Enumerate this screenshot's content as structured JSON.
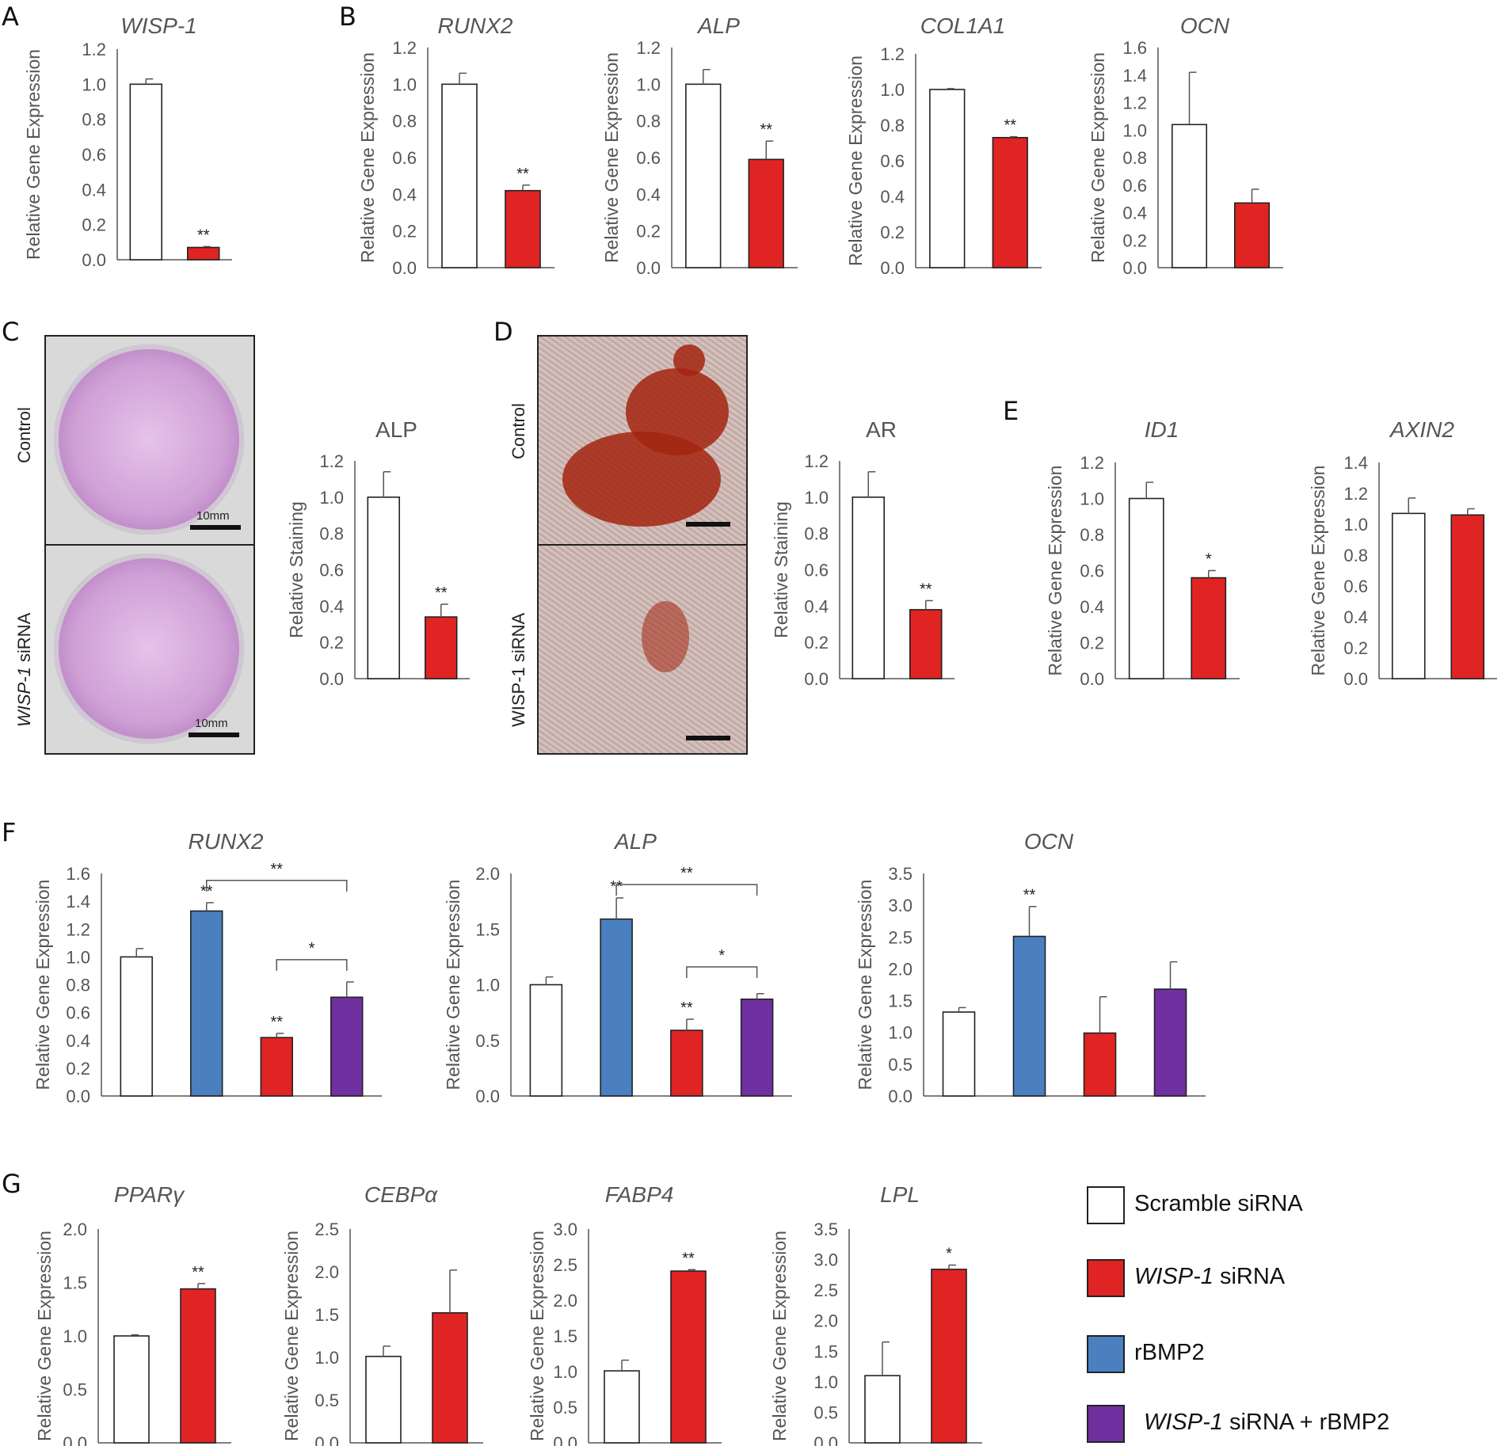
{
  "panel_labels": [
    "A",
    "B",
    "C",
    "D",
    "E",
    "F",
    "G"
  ],
  "colors": {
    "scramble": "#ffffff",
    "wisp1": "#e02424",
    "rbmp2": "#4a80c0",
    "combo": "#7030a0",
    "axis": "#555555"
  },
  "legend": {
    "items": [
      {
        "label_prefix": "",
        "label_suffix": "Scramble siRNA",
        "color": "#ffffff"
      },
      {
        "label_prefix": "WISP-1",
        "label_suffix": " siRNA",
        "color": "#e02424"
      },
      {
        "label_prefix": "",
        "label_suffix": "rBMP2",
        "color": "#4a80c0"
      },
      {
        "label_prefix": "WISP-1",
        "label_suffix": " siRNA + rBMP2",
        "color": "#7030a0"
      }
    ]
  },
  "photos": {
    "c_top_label": "Control",
    "c_bottom_label_italic": "WISP-1",
    "c_bottom_label_rest": " siRNA",
    "d_top_label": "Control",
    "d_bottom_label": "WISP-1 siRNA",
    "scale_text": "10mm"
  },
  "chart_data": [
    {
      "id": "A-WISP1",
      "panel": "A",
      "type": "bar",
      "title": "WISP-1",
      "title_italic": true,
      "ylabel": "Relative Gene Expression",
      "ylim": [
        0,
        1.2
      ],
      "yticks": [
        0.0,
        0.2,
        0.4,
        0.6,
        0.8,
        1.0,
        1.2
      ],
      "series": [
        {
          "values": [
            1.0,
            0.07
          ],
          "errors": [
            0.03,
            0.005
          ],
          "colors": [
            "#ffffff",
            "#e02424"
          ],
          "annotations": [
            "",
            "**"
          ]
        }
      ],
      "brackets": []
    },
    {
      "id": "B-RUNX2",
      "panel": "B",
      "type": "bar",
      "title": "RUNX2",
      "title_italic": true,
      "ylabel": "Relative Gene Expression",
      "ylim": [
        0,
        1.2
      ],
      "yticks": [
        0.0,
        0.2,
        0.4,
        0.6,
        0.8,
        1.0,
        1.2
      ],
      "series": [
        {
          "values": [
            1.0,
            0.42
          ],
          "errors": [
            0.06,
            0.03
          ],
          "colors": [
            "#ffffff",
            "#e02424"
          ],
          "annotations": [
            "",
            "**"
          ]
        }
      ],
      "brackets": []
    },
    {
      "id": "B-ALP",
      "panel": "B",
      "type": "bar",
      "title": "ALP",
      "title_italic": true,
      "ylabel": "Relative Gene Expression",
      "ylim": [
        0,
        1.2
      ],
      "yticks": [
        0.0,
        0.2,
        0.4,
        0.6,
        0.8,
        1.0,
        1.2
      ],
      "series": [
        {
          "values": [
            1.0,
            0.59
          ],
          "errors": [
            0.08,
            0.1
          ],
          "colors": [
            "#ffffff",
            "#e02424"
          ],
          "annotations": [
            "",
            "**"
          ]
        }
      ],
      "brackets": []
    },
    {
      "id": "B-COL1A1",
      "panel": "B",
      "type": "bar",
      "title": "COL1A1",
      "title_italic": true,
      "ylabel": "Relative Gene Expression",
      "ylim": [
        0,
        1.2
      ],
      "yticks": [
        0.0,
        0.2,
        0.4,
        0.6,
        0.8,
        1.0,
        1.2
      ],
      "series": [
        {
          "values": [
            1.0,
            0.73
          ],
          "errors": [
            0.005,
            0.005
          ],
          "colors": [
            "#ffffff",
            "#e02424"
          ],
          "annotations": [
            "",
            "**"
          ]
        }
      ],
      "brackets": []
    },
    {
      "id": "B-OCN",
      "panel": "B",
      "type": "bar",
      "title": "OCN",
      "title_italic": true,
      "ylabel": "Relative Gene Expression",
      "ylim": [
        0,
        1.6
      ],
      "yticks": [
        0.0,
        0.2,
        0.4,
        0.6,
        0.8,
        1.0,
        1.2,
        1.4,
        1.6
      ],
      "series": [
        {
          "values": [
            1.04,
            0.47
          ],
          "errors": [
            0.38,
            0.1
          ],
          "colors": [
            "#ffffff",
            "#e02424"
          ],
          "annotations": [
            "",
            ""
          ]
        }
      ],
      "brackets": []
    },
    {
      "id": "C-ALP",
      "panel": "C",
      "type": "bar",
      "title": "ALP",
      "title_italic": false,
      "ylabel": "Relative Staining",
      "ylim": [
        0,
        1.2
      ],
      "yticks": [
        0.0,
        0.2,
        0.4,
        0.6,
        0.8,
        1.0,
        1.2
      ],
      "series": [
        {
          "values": [
            1.0,
            0.34
          ],
          "errors": [
            0.14,
            0.07
          ],
          "colors": [
            "#ffffff",
            "#e02424"
          ],
          "annotations": [
            "",
            "**"
          ]
        }
      ],
      "brackets": []
    },
    {
      "id": "D-AR",
      "panel": "D",
      "type": "bar",
      "title": "AR",
      "title_italic": false,
      "ylabel": "Relative Staining",
      "ylim": [
        0,
        1.2
      ],
      "yticks": [
        0.0,
        0.2,
        0.4,
        0.6,
        0.8,
        1.0,
        1.2
      ],
      "series": [
        {
          "values": [
            1.0,
            0.38
          ],
          "errors": [
            0.14,
            0.05
          ],
          "colors": [
            "#ffffff",
            "#e02424"
          ],
          "annotations": [
            "",
            "**"
          ]
        }
      ],
      "brackets": []
    },
    {
      "id": "E-ID1",
      "panel": "E",
      "type": "bar",
      "title": "ID1",
      "title_italic": true,
      "ylabel": "Relative Gene Expression",
      "ylim": [
        0,
        1.2
      ],
      "yticks": [
        0.0,
        0.2,
        0.4,
        0.6,
        0.8,
        1.0,
        1.2
      ],
      "series": [
        {
          "values": [
            1.0,
            0.56
          ],
          "errors": [
            0.09,
            0.04
          ],
          "colors": [
            "#ffffff",
            "#e02424"
          ],
          "annotations": [
            "",
            "*"
          ]
        }
      ],
      "brackets": []
    },
    {
      "id": "E-AXIN2",
      "panel": "E",
      "type": "bar",
      "title": "AXIN2",
      "title_italic": true,
      "ylabel": "Relative Gene Expression",
      "ylim": [
        0,
        1.4
      ],
      "yticks": [
        0.0,
        0.2,
        0.4,
        0.6,
        0.8,
        1.0,
        1.2,
        1.4
      ],
      "series": [
        {
          "values": [
            1.07,
            1.06
          ],
          "errors": [
            0.1,
            0.04
          ],
          "colors": [
            "#ffffff",
            "#e02424"
          ],
          "annotations": [
            "",
            ""
          ]
        }
      ],
      "brackets": []
    },
    {
      "id": "F-RUNX2",
      "panel": "F",
      "type": "bar",
      "title": "RUNX2",
      "title_italic": true,
      "ylabel": "Relative Gene Expression",
      "ylim": [
        0,
        1.6
      ],
      "yticks": [
        0.0,
        0.2,
        0.4,
        0.6,
        0.8,
        1.0,
        1.2,
        1.4,
        1.6
      ],
      "series": [
        {
          "values": [
            1.0,
            1.33,
            0.42,
            0.71
          ],
          "errors": [
            0.06,
            0.06,
            0.03,
            0.11
          ],
          "colors": [
            "#ffffff",
            "#4a80c0",
            "#e02424",
            "#7030a0"
          ],
          "annotations": [
            "",
            "**",
            "**",
            ""
          ]
        }
      ],
      "brackets": [
        {
          "from": 1,
          "to": 3,
          "y": 1.55,
          "label": "**"
        },
        {
          "from": 2,
          "to": 3,
          "y": 0.98,
          "label": "*"
        }
      ]
    },
    {
      "id": "F-ALP",
      "panel": "F",
      "type": "bar",
      "title": "ALP",
      "title_italic": true,
      "ylabel": "Relative Gene Expression",
      "ylim": [
        0,
        2.0
      ],
      "yticks": [
        0.0,
        0.5,
        1.0,
        1.5,
        2.0
      ],
      "series": [
        {
          "values": [
            1.0,
            1.59,
            0.59,
            0.87
          ],
          "errors": [
            0.07,
            0.19,
            0.1,
            0.05
          ],
          "colors": [
            "#ffffff",
            "#4a80c0",
            "#e02424",
            "#7030a0"
          ],
          "annotations": [
            "",
            "**",
            "**",
            ""
          ]
        }
      ],
      "brackets": [
        {
          "from": 1,
          "to": 3,
          "y": 1.9,
          "label": "**"
        },
        {
          "from": 2,
          "to": 3,
          "y": 1.16,
          "label": "*"
        }
      ]
    },
    {
      "id": "F-OCN",
      "panel": "F",
      "type": "bar",
      "title": "OCN",
      "title_italic": true,
      "ylabel": "Relative Gene Expression",
      "ylim": [
        0,
        3.5
      ],
      "yticks": [
        0.0,
        0.5,
        1.0,
        1.5,
        2.0,
        2.5,
        3.0,
        3.5
      ],
      "series": [
        {
          "values": [
            1.32,
            2.51,
            0.99,
            1.68
          ],
          "errors": [
            0.07,
            0.47,
            0.57,
            0.43
          ],
          "colors": [
            "#ffffff",
            "#4a80c0",
            "#e02424",
            "#7030a0"
          ],
          "annotations": [
            "",
            "**",
            "",
            ""
          ]
        }
      ],
      "brackets": []
    },
    {
      "id": "G-PPARG",
      "panel": "G",
      "type": "bar",
      "title": "PPARγ",
      "title_italic": true,
      "ylabel": "Relative Gene Expression",
      "ylim": [
        0,
        2.0
      ],
      "yticks": [
        0.0,
        0.5,
        1.0,
        1.5,
        2.0
      ],
      "series": [
        {
          "values": [
            1.0,
            1.44
          ],
          "errors": [
            0.01,
            0.05
          ],
          "colors": [
            "#ffffff",
            "#e02424"
          ],
          "annotations": [
            "",
            "**"
          ]
        }
      ],
      "brackets": []
    },
    {
      "id": "G-CEBPA",
      "panel": "G",
      "type": "bar",
      "title": "CEBPα",
      "title_italic": true,
      "ylabel": "Relative Gene Expression",
      "ylim": [
        0,
        2.5
      ],
      "yticks": [
        0.0,
        0.5,
        1.0,
        1.5,
        2.0,
        2.5
      ],
      "series": [
        {
          "values": [
            1.01,
            1.52
          ],
          "errors": [
            0.12,
            0.5
          ],
          "colors": [
            "#ffffff",
            "#e02424"
          ],
          "annotations": [
            "",
            ""
          ]
        }
      ],
      "brackets": []
    },
    {
      "id": "G-FABP4",
      "panel": "G",
      "type": "bar",
      "title": "FABP4",
      "title_italic": true,
      "ylabel": "Relative Gene Expression",
      "ylim": [
        0,
        3.0
      ],
      "yticks": [
        0.0,
        0.5,
        1.0,
        1.5,
        2.0,
        2.5,
        3.0
      ],
      "series": [
        {
          "values": [
            1.01,
            2.41
          ],
          "errors": [
            0.15,
            0.02
          ],
          "colors": [
            "#ffffff",
            "#e02424"
          ],
          "annotations": [
            "",
            "**"
          ]
        }
      ],
      "brackets": []
    },
    {
      "id": "G-LPL",
      "panel": "G",
      "type": "bar",
      "title": "LPL",
      "title_italic": true,
      "ylabel": "Relative Gene Expression",
      "ylim": [
        0,
        3.5
      ],
      "yticks": [
        0.0,
        0.5,
        1.0,
        1.5,
        2.0,
        2.5,
        3.0,
        3.5
      ],
      "series": [
        {
          "values": [
            1.1,
            2.84
          ],
          "errors": [
            0.55,
            0.07
          ],
          "colors": [
            "#ffffff",
            "#e02424"
          ],
          "annotations": [
            "",
            "*"
          ]
        }
      ],
      "brackets": []
    }
  ]
}
